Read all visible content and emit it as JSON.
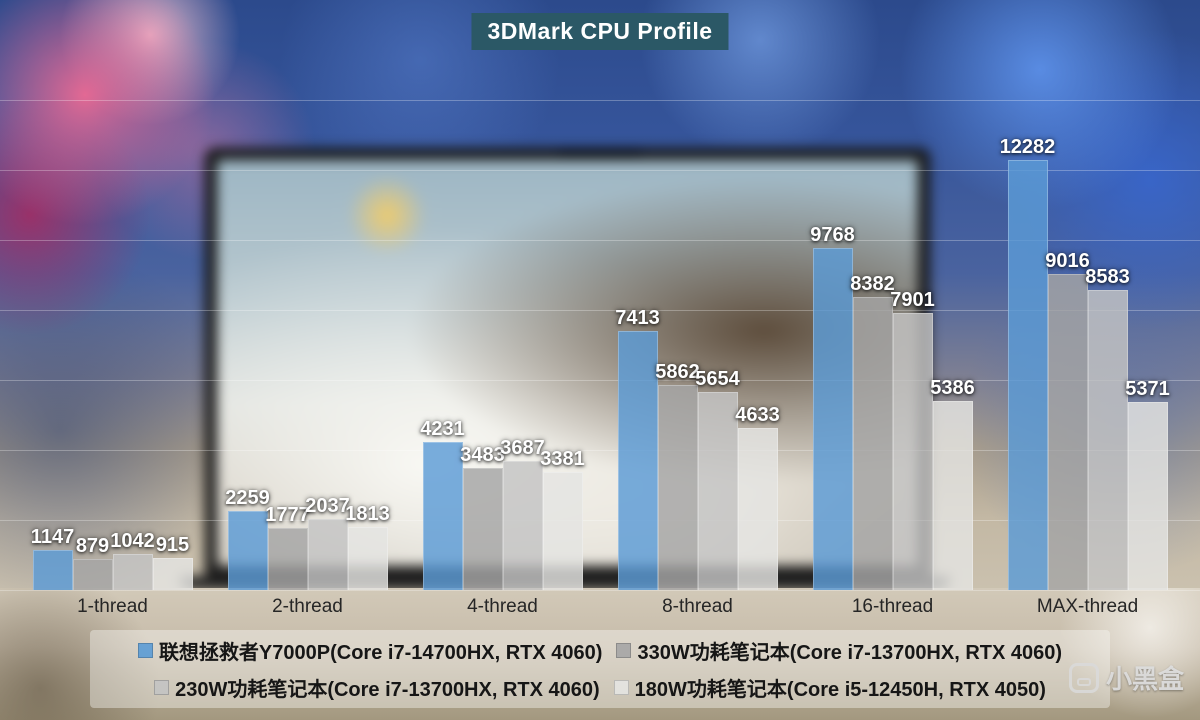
{
  "title": "3DMark CPU Profile",
  "watermark": "小黑盒",
  "chart_data": {
    "type": "bar",
    "title": "3DMark CPU Profile",
    "categories": [
      "1-thread",
      "2-thread",
      "4-thread",
      "8-thread",
      "16-thread",
      "MAX-thread"
    ],
    "series": [
      {
        "name": "联想拯救者Y7000P(Core i7-14700HX, RTX 4060)",
        "color": "#5B9BD5",
        "values": [
          1147,
          2259,
          4231,
          7413,
          9768,
          12282
        ]
      },
      {
        "name": "330W功耗笔记本(Core i7-13700HX, RTX 4060)",
        "color": "#A5A5A5",
        "values": [
          879,
          1777,
          3483,
          5862,
          8382,
          9016
        ]
      },
      {
        "name": "230W功耗笔记本(Core i7-13700HX, RTX 4060)",
        "color": "#C3C3C3",
        "values": [
          1042,
          2037,
          3687,
          5654,
          7901,
          8583
        ]
      },
      {
        "name": "180W功耗笔记本(Core i5-12450H, RTX 4050)",
        "color": "#E4E4E2",
        "values": [
          915,
          1813,
          3381,
          4633,
          5386,
          5371
        ]
      }
    ],
    "ylim": [
      0,
      14000
    ],
    "gridline_step": 2000,
    "grid": true,
    "legend_position": "bottom",
    "data_labels": true
  }
}
